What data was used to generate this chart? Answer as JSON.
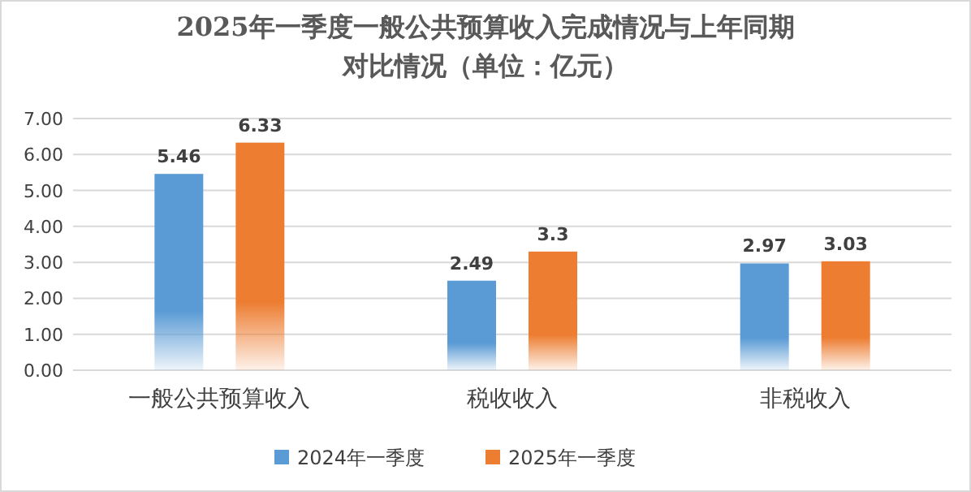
{
  "chart_data": {
    "type": "bar",
    "title": "2025年一季度一般公共预算收入完成情况与上年同期对比情况（单位：亿元）",
    "categories": [
      "一般公共预算收入",
      "税收收入",
      "非税收入"
    ],
    "series": [
      {
        "name": "2024年一季度",
        "color": "#5b9bd5",
        "values": [
          5.46,
          2.49,
          2.97
        ]
      },
      {
        "name": "2025年一季度",
        "color": "#ed7d31",
        "values": [
          6.33,
          3.3,
          3.03
        ]
      }
    ],
    "ylim": [
      0,
      7
    ],
    "yticks": [
      {
        "value": 0,
        "label": "0.00"
      },
      {
        "value": 1,
        "label": "1.00"
      },
      {
        "value": 2,
        "label": "2.00"
      },
      {
        "value": 3,
        "label": "3.00"
      },
      {
        "value": 4,
        "label": "4.00"
      },
      {
        "value": 5,
        "label": "5.00"
      },
      {
        "value": 6,
        "label": "6.00"
      },
      {
        "value": 7,
        "label": "7.00"
      }
    ],
    "grid": "y",
    "data_labels": true,
    "legend": "bottom"
  }
}
